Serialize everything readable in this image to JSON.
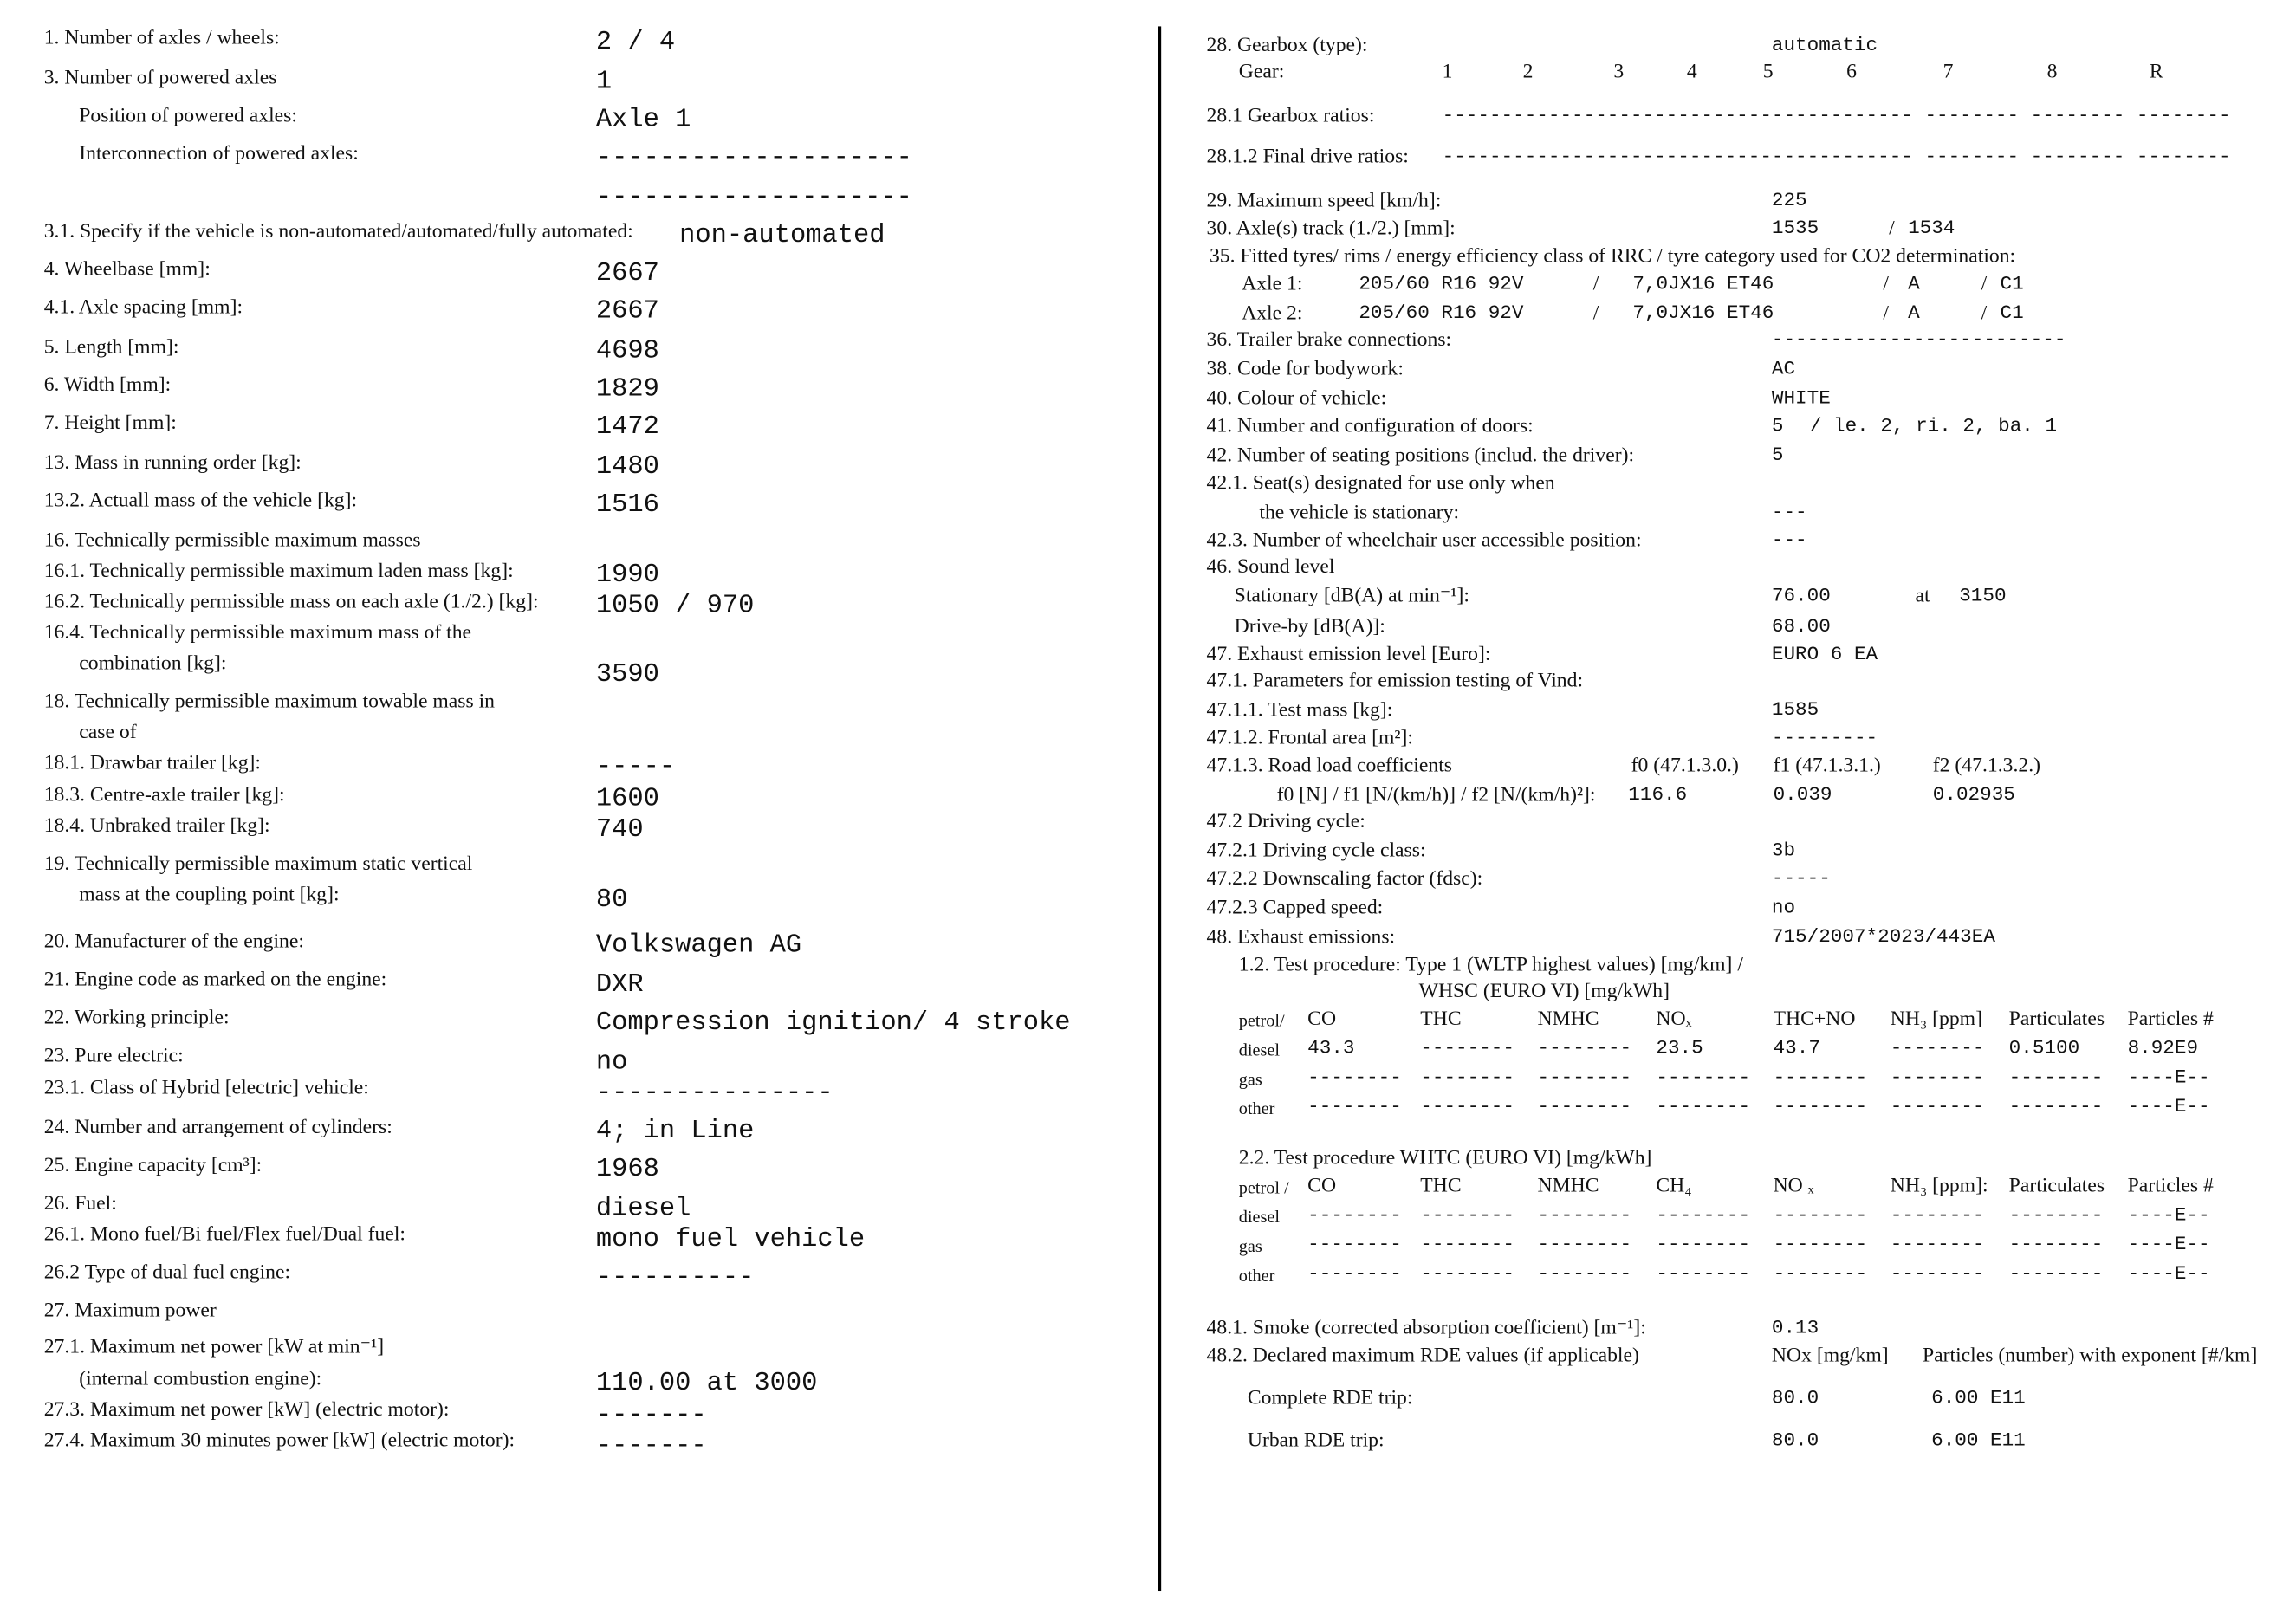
{
  "left": [
    {
      "label": "1. Number of axles / wheels:",
      "value": "2 / 4"
    },
    {
      "label": "3. Number of powered axles",
      "value": "1"
    },
    {
      "label": "Position of powered axles:",
      "value": "Axle 1"
    },
    {
      "label": "Interconnection of powered axles:",
      "value": "--------------------"
    },
    {
      "value": "--------------------"
    },
    {
      "label": "3.1. Specify if the vehicle is non-automated/automated/fully automated:",
      "value": "non-automated"
    },
    {
      "label": "4. Wheelbase [mm]:",
      "value": "2667"
    },
    {
      "label": "4.1. Axle spacing [mm]:",
      "value": "2667"
    },
    {
      "label": "5. Length [mm]:",
      "value": "4698"
    },
    {
      "label": "6. Width [mm]:",
      "value": "1829"
    },
    {
      "label": "7. Height [mm]:",
      "value": "1472"
    },
    {
      "label": "13. Mass in running order [kg]:",
      "value": "1480"
    },
    {
      "label": "13.2. Actuall mass of the vehicle [kg]:",
      "value": "1516"
    },
    {
      "label": "16. Technically permissible maximum masses"
    },
    {
      "label": "16.1. Technically permissible maximum laden mass [kg]:",
      "value": "1990"
    },
    {
      "label": "16.2. Technically permissible mass on each axle (1./2.) [kg]:",
      "value": "1050 / 970"
    },
    {
      "label": "16.4. Technically permissible maximum mass of the"
    },
    {
      "label": "combination [kg]:",
      "value": "3590"
    },
    {
      "label": "18. Technically permissible maximum towable mass in"
    },
    {
      "label": "case of"
    },
    {
      "label": "18.1. Drawbar trailer [kg]:",
      "value": "-----"
    },
    {
      "label": "18.3. Centre-axle trailer [kg]:",
      "value": "1600"
    },
    {
      "label": "18.4. Unbraked trailer [kg]:",
      "value": "740"
    },
    {
      "label": "19. Technically permissible maximum static vertical"
    },
    {
      "label": "mass at the coupling point [kg]:",
      "value": "80"
    },
    {
      "label": "20. Manufacturer of the engine:",
      "value": "Volkswagen AG"
    },
    {
      "label": "21. Engine code as marked on the engine:",
      "value": "DXR"
    },
    {
      "label": "22. Working principle:",
      "value": "Compression ignition/ 4 stroke"
    },
    {
      "label": "23. Pure electric:",
      "value": "no"
    },
    {
      "label": "23.1. Class of Hybrid [electric] vehicle:",
      "value": "---------------"
    },
    {
      "label": "24. Number and arrangement of cylinders:",
      "value": "4; in Line"
    },
    {
      "label": "25. Engine capacity [cm³]:",
      "value": "1968"
    },
    {
      "label": "26. Fuel:",
      "value": "diesel"
    },
    {
      "label": "26.1. Mono fuel/Bi fuel/Flex fuel/Dual fuel:",
      "value": "mono fuel vehicle"
    },
    {
      "label": "26.2 Type of dual fuel engine:",
      "value": "----------"
    },
    {
      "label": "27. Maximum power"
    },
    {
      "label": "27.1. Maximum net power [kW at min⁻¹]"
    },
    {
      "label": "(internal combustion engine):",
      "value": "110.00 at 3000"
    },
    {
      "label": "27.3. Maximum net power [kW] (electric motor):",
      "value": "-------"
    },
    {
      "label": "27.4. Maximum 30 minutes power [kW] (electric motor):",
      "value": "-------"
    }
  ],
  "right": {
    "rows": [
      [
        "28. Gearbox (type):",
        "automatic"
      ],
      [
        "Gear:",
        "1",
        "2",
        "3",
        "4",
        "5",
        "6",
        "7",
        "8",
        "R"
      ],
      [
        "28.1 Gearbox ratios:",
        "---------------------------------------- -------- -------- --------"
      ],
      [
        "28.1.2 Final drive ratios:",
        "---------------------------------------- -------- -------- --------"
      ],
      [
        "29. Maximum speed [km/h]:",
        "225"
      ],
      [
        "30. Axle(s) track (1./2.) [mm]:",
        "1535",
        "/",
        "1534"
      ],
      [
        "35. Fitted tyres/ rims / energy efficiency class of RRC / tyre category used for CO2 determination:"
      ],
      [
        "Axle 1:",
        "205/60 R16 92V",
        "/",
        "7,0JX16 ET46",
        "/",
        "A",
        "/",
        "C1"
      ],
      [
        "Axle 2:",
        "205/60 R16 92V",
        "/",
        "7,0JX16 ET46",
        "/",
        "A",
        "/",
        "C1"
      ],
      [
        "36. Trailer brake connections:",
        "-------------------------"
      ],
      [
        "38. Code for bodywork:",
        "AC"
      ],
      [
        "40. Colour of vehicle:",
        "WHITE"
      ],
      [
        "41. Number and configuration of doors:",
        "5",
        "/ le. 2, ri. 2, ba. 1"
      ],
      [
        "42. Number of seating positions (includ. the driver):",
        "5"
      ],
      [
        "42.1. Seat(s) designated for use only when"
      ],
      [
        "the vehicle is stationary:",
        "---"
      ],
      [
        "42.3. Number of wheelchair user accessible position:",
        "---"
      ],
      [
        "46. Sound level"
      ],
      [
        "Stationary [dB(A) at min⁻¹]:",
        "76.00",
        "at",
        "3150"
      ],
      [
        "Drive-by [dB(A)]:",
        "68.00"
      ],
      [
        "47. Exhaust emission level [Euro]:",
        "EURO 6 EA"
      ],
      [
        "47.1. Parameters for emission testing of Vind:"
      ],
      [
        "47.1.1. Test mass [kg]:",
        "1585"
      ],
      [
        "47.1.2. Frontal area [m²]:",
        "---------"
      ],
      [
        "47.1.3. Road load coefficients",
        "f0 (47.1.3.0.)",
        "f1 (47.1.3.1.)",
        "f2 (47.1.3.2.)"
      ],
      [
        "f0 [N] / f1 [N/(km/h)] / f2 [N/(km/h)²]:",
        "116.6",
        "0.039",
        "0.02935"
      ],
      [
        "47.2 Driving cycle:"
      ],
      [
        "47.2.1 Driving cycle class:",
        "3b"
      ],
      [
        "47.2.2 Downscaling factor (fdsc):",
        "-----"
      ],
      [
        "47.2.3 Capped speed:",
        "no"
      ],
      [
        "48. Exhaust emissions:",
        "715/2007*2023/443EA"
      ],
      [
        "1.2. Test procedure: Type 1 (WLTP highest values) [mg/km] /"
      ],
      [
        "WHSC (EURO VI) [mg/kWh]"
      ],
      [
        "petrol/",
        "CO",
        "THC",
        "NMHC",
        "NOₓ",
        "THC+NO",
        "NH₃ [ppm]",
        "Particulates",
        "Particles #"
      ],
      [
        "diesel",
        "43.3",
        "--------",
        "--------",
        "23.5",
        "43.7",
        "--------",
        "0.5100",
        "8.92E9"
      ],
      [
        "gas",
        "--------",
        "--------",
        "--------",
        "--------",
        "--------",
        "--------",
        "--------",
        "----E--"
      ],
      [
        "other",
        "--------",
        "--------",
        "--------",
        "--------",
        "--------",
        "--------",
        "--------",
        "----E--"
      ],
      [
        "2.2. Test procedure WHTC (EURO VI) [mg/kWh]"
      ],
      [
        "petrol /",
        "CO",
        "THC",
        "NMHC",
        "CH₄",
        "NO ₓ",
        "NH₃ [ppm]:",
        "Particulates",
        "Particles #"
      ],
      [
        "diesel",
        "--------",
        "--------",
        "--------",
        "--------",
        "--------",
        "--------",
        "--------",
        "----E--"
      ],
      [
        "gas",
        "--------",
        "--------",
        "--------",
        "--------",
        "--------",
        "--------",
        "--------",
        "----E--"
      ],
      [
        "other",
        "--------",
        "--------",
        "--------",
        "--------",
        "--------",
        "--------",
        "--------",
        "----E--"
      ],
      [
        "48.1. Smoke (corrected absorption coefficient) [m⁻¹]:",
        "0.13"
      ],
      [
        "48.2. Declared maximum RDE values (if applicable)",
        "NOx [mg/km]",
        "Particles (number) with exponent [#/km]"
      ],
      [
        "Complete RDE trip:",
        "80.0",
        "6.00 E11"
      ],
      [
        "Urban RDE trip:",
        "80.0",
        "6.00 E11"
      ]
    ]
  }
}
